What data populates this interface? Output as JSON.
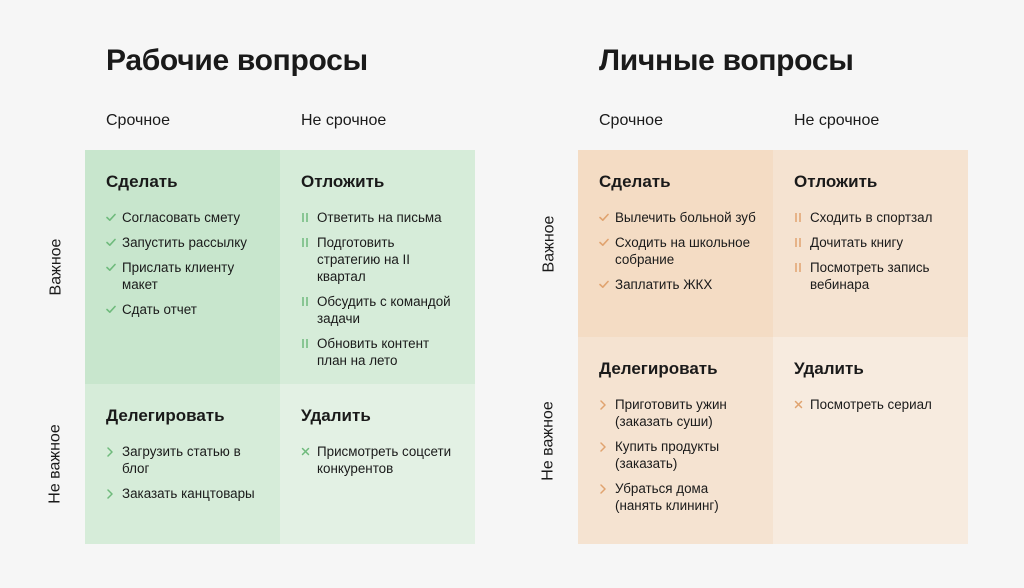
{
  "boards": [
    {
      "title": "Рабочие вопросы",
      "columns": [
        "Срочное",
        "Не срочное"
      ],
      "rows": [
        "Важное",
        "Не важное"
      ],
      "quadrants": {
        "do": {
          "title": "Сделать",
          "marker": "check",
          "tasks": [
            "Согласовать смету",
            "Запустить рассылку",
            "Прислать клиенту макет",
            "Сдать отчет"
          ]
        },
        "schedule": {
          "title": "Отложить",
          "marker": "pause",
          "tasks": [
            "Ответить на письма",
            "Подготовить стратегию на II квартал",
            "Обсудить с командой задачи",
            "Обновить контент план на лето"
          ]
        },
        "delegate": {
          "title": "Делегировать",
          "marker": "chevron",
          "tasks": [
            "Загрузить статью в блог",
            "Заказать канцтовары"
          ]
        },
        "delete": {
          "title": "Удалить",
          "marker": "cross",
          "tasks": [
            "Присмотреть соцсети конкурентов"
          ]
        }
      }
    },
    {
      "title": "Личные вопросы",
      "columns": [
        "Срочное",
        "Не срочное"
      ],
      "rows": [
        "Важное",
        "Не важное"
      ],
      "quadrants": {
        "do": {
          "title": "Сделать",
          "marker": "check",
          "tasks": [
            "Вылечить больной зуб",
            "Сходить на школьное собрание",
            "Заплатить ЖКХ"
          ]
        },
        "schedule": {
          "title": "Отложить",
          "marker": "pause",
          "tasks": [
            "Сходить в спортзал",
            "Дочитать книгу",
            "Посмотреть запись вебинара"
          ]
        },
        "delegate": {
          "title": "Делегировать",
          "marker": "chevron",
          "tasks": [
            "Приготовить ужин (заказать суши)",
            "Купить продукты (заказать)",
            "Убраться дома (нанять клининг)"
          ]
        },
        "delete": {
          "title": "Удалить",
          "marker": "cross",
          "tasks": [
            "Посмотреть сериал"
          ]
        }
      }
    }
  ],
  "colors": {
    "work_q1": "#c8e6cd",
    "work_q2": "#d6ecd9",
    "work_q4": "#e3f1e4",
    "work_marker": "#6fba7c",
    "personal_q1": "#f4dcc4",
    "personal_q2": "#f5e3d1",
    "personal_q4": "#f7ebdf",
    "personal_marker": "#e0a36f"
  }
}
